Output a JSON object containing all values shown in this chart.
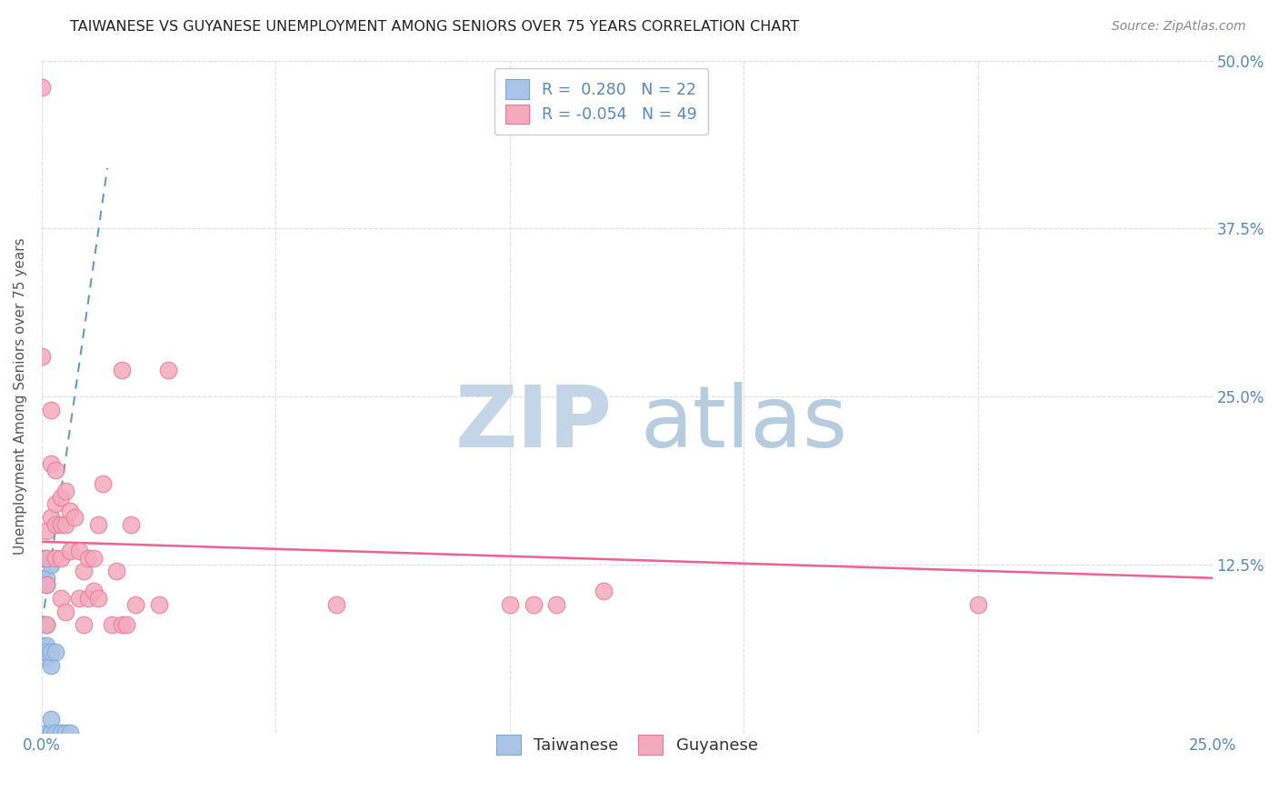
{
  "title": "TAIWANESE VS GUYANESE UNEMPLOYMENT AMONG SENIORS OVER 75 YEARS CORRELATION CHART",
  "source": "Source: ZipAtlas.com",
  "ylabel": "Unemployment Among Seniors over 75 years",
  "xlim": [
    0,
    0.25
  ],
  "ylim": [
    0,
    0.5
  ],
  "xticks": [
    0.0,
    0.05,
    0.1,
    0.15,
    0.2,
    0.25
  ],
  "xticklabels": [
    "0.0%",
    "",
    "",
    "",
    "",
    "25.0%"
  ],
  "yticks": [
    0.0,
    0.125,
    0.25,
    0.375,
    0.5
  ],
  "yticklabels_right": [
    "",
    "12.5%",
    "25.0%",
    "37.5%",
    "50.0%"
  ],
  "taiwanese_R": 0.28,
  "taiwanese_N": 22,
  "guyanese_R": -0.054,
  "guyanese_N": 49,
  "taiwanese_color": "#aac4e8",
  "taiwanese_edge": "#7aaad4",
  "guyanese_color": "#f4aabc",
  "guyanese_edge": "#e87898",
  "trend_taiwanese_color": "#6699cc",
  "trend_guyanese_color": "#f06090",
  "watermark_zip_color": "#c8d8ec",
  "watermark_atlas_color": "#b0c4de",
  "background_color": "#ffffff",
  "grid_color": "#dddddd",
  "title_color": "#222222",
  "source_color": "#888888",
  "axis_label_color": "#555555",
  "tick_label_color": "#5588bb",
  "taiwanese_x": [
    0.0,
    0.0,
    0.0,
    0.001,
    0.001,
    0.001,
    0.001,
    0.001,
    0.001,
    0.001,
    0.001,
    0.002,
    0.002,
    0.002,
    0.002,
    0.002,
    0.002,
    0.003,
    0.003,
    0.004,
    0.005,
    0.006
  ],
  "taiwanese_y": [
    0.13,
    0.115,
    0.065,
    0.0,
    0.055,
    0.115,
    0.065,
    0.11,
    0.13,
    0.06,
    0.08,
    0.0,
    0.05,
    0.125,
    0.06,
    0.0,
    0.01,
    0.0,
    0.06,
    0.0,
    0.0,
    0.0
  ],
  "guyanese_x": [
    0.0,
    0.0,
    0.001,
    0.001,
    0.001,
    0.001,
    0.002,
    0.002,
    0.002,
    0.003,
    0.003,
    0.003,
    0.003,
    0.004,
    0.004,
    0.004,
    0.004,
    0.005,
    0.005,
    0.005,
    0.006,
    0.006,
    0.007,
    0.008,
    0.008,
    0.009,
    0.009,
    0.01,
    0.01,
    0.011,
    0.011,
    0.012,
    0.012,
    0.013,
    0.015,
    0.016,
    0.017,
    0.017,
    0.018,
    0.019,
    0.02,
    0.025,
    0.027,
    0.063,
    0.1,
    0.105,
    0.11,
    0.12,
    0.2
  ],
  "guyanese_y": [
    0.48,
    0.28,
    0.11,
    0.13,
    0.15,
    0.08,
    0.2,
    0.16,
    0.24,
    0.195,
    0.17,
    0.155,
    0.13,
    0.175,
    0.155,
    0.13,
    0.1,
    0.18,
    0.155,
    0.09,
    0.165,
    0.135,
    0.16,
    0.135,
    0.1,
    0.12,
    0.08,
    0.13,
    0.1,
    0.13,
    0.105,
    0.155,
    0.1,
    0.185,
    0.08,
    0.12,
    0.08,
    0.27,
    0.08,
    0.155,
    0.095,
    0.095,
    0.27,
    0.095,
    0.095,
    0.095,
    0.095,
    0.105,
    0.095
  ],
  "tw_trend_x": [
    0.0,
    0.014
  ],
  "tw_trend_y": [
    0.08,
    0.42
  ],
  "gy_trend_x": [
    0.0,
    0.25
  ],
  "gy_trend_y": [
    0.142,
    0.115
  ]
}
